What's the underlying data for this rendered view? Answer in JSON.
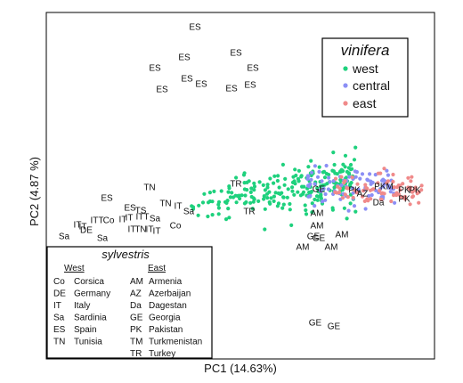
{
  "chart_data": {
    "type": "scatter",
    "xlabel": "PC1 (14.63%)",
    "ylabel": "PC2 (4.87 %)",
    "grid": false,
    "legend_position": "top-right",
    "legend_title": "vinifera",
    "series": [
      {
        "name": "west",
        "color": "#1ed17d"
      },
      {
        "name": "central",
        "color": "#8b8ff5"
      },
      {
        "name": "east",
        "color": "#f08a8a"
      }
    ],
    "sample_labels": [
      {
        "text": "ES",
        "x": 219,
        "y": 31
      },
      {
        "text": "ES",
        "x": 207,
        "y": 65
      },
      {
        "text": "ES",
        "x": 265,
        "y": 60
      },
      {
        "text": "ES",
        "x": 174,
        "y": 77
      },
      {
        "text": "ES",
        "x": 284,
        "y": 77
      },
      {
        "text": "ES",
        "x": 210,
        "y": 89
      },
      {
        "text": "ES",
        "x": 226,
        "y": 95
      },
      {
        "text": "ES",
        "x": 182,
        "y": 101
      },
      {
        "text": "ES",
        "x": 260,
        "y": 100
      },
      {
        "text": "ES",
        "x": 281,
        "y": 96
      },
      {
        "text": "ES",
        "x": 120,
        "y": 223
      },
      {
        "text": "ES",
        "x": 146,
        "y": 234
      },
      {
        "text": "TN",
        "x": 168,
        "y": 211
      },
      {
        "text": "TN",
        "x": 186,
        "y": 229
      },
      {
        "text": "IT",
        "x": 200,
        "y": 232
      },
      {
        "text": "Sa",
        "x": 212,
        "y": 238
      },
      {
        "text": "IT",
        "x": 145,
        "y": 245
      },
      {
        "text": "TS",
        "x": 158,
        "y": 237
      },
      {
        "text": "ITT",
        "x": 160,
        "y": 244
      },
      {
        "text": "Sa",
        "x": 174,
        "y": 246
      },
      {
        "text": "ITT",
        "x": 109,
        "y": 248
      },
      {
        "text": "Co",
        "x": 122,
        "y": 248
      },
      {
        "text": "IT",
        "x": 138,
        "y": 247
      },
      {
        "text": "IT",
        "x": 87,
        "y": 253
      },
      {
        "text": "IT",
        "x": 93,
        "y": 255
      },
      {
        "text": "DE",
        "x": 97,
        "y": 259
      },
      {
        "text": "IT",
        "x": 148,
        "y": 258
      },
      {
        "text": "TN",
        "x": 158,
        "y": 258
      },
      {
        "text": "IT",
        "x": 168,
        "y": 258
      },
      {
        "text": "IT",
        "x": 176,
        "y": 260
      },
      {
        "text": "Co",
        "x": 197,
        "y": 254
      },
      {
        "text": "Sa",
        "x": 72,
        "y": 266
      },
      {
        "text": "Sa",
        "x": 115,
        "y": 268
      },
      {
        "text": "TR",
        "x": 265,
        "y": 207
      },
      {
        "text": "TR",
        "x": 280,
        "y": 238
      },
      {
        "text": "GE",
        "x": 358,
        "y": 213
      },
      {
        "text": "PK",
        "x": 398,
        "y": 214
      },
      {
        "text": "AZ",
        "x": 407,
        "y": 218
      },
      {
        "text": "PKM",
        "x": 431,
        "y": 210
      },
      {
        "text": "PK",
        "x": 454,
        "y": 214
      },
      {
        "text": "PK",
        "x": 466,
        "y": 214
      },
      {
        "text": "Da",
        "x": 425,
        "y": 228
      },
      {
        "text": "PK",
        "x": 454,
        "y": 224
      },
      {
        "text": "AM",
        "x": 356,
        "y": 240
      },
      {
        "text": "AM",
        "x": 356,
        "y": 254
      },
      {
        "text": "GE",
        "x": 352,
        "y": 266
      },
      {
        "text": "GE",
        "x": 358,
        "y": 268
      },
      {
        "text": "AM",
        "x": 384,
        "y": 264
      },
      {
        "text": "AM",
        "x": 340,
        "y": 278
      },
      {
        "text": "AM",
        "x": 372,
        "y": 278
      },
      {
        "text": "GE",
        "x": 354,
        "y": 363
      },
      {
        "text": "GE",
        "x": 375,
        "y": 367
      }
    ],
    "sylvestris_key": {
      "title": "sylvestris",
      "west_header": "West",
      "east_header": "East",
      "west": [
        {
          "code": "Co",
          "name": "Corsica"
        },
        {
          "code": "DE",
          "name": "Germany"
        },
        {
          "code": "IT",
          "name": "Italy"
        },
        {
          "code": "Sa",
          "name": "Sardinia"
        },
        {
          "code": "ES",
          "name": "Spain"
        },
        {
          "code": "TN",
          "name": "Tunisia"
        }
      ],
      "east": [
        {
          "code": "AM",
          "name": "Armenia"
        },
        {
          "code": "AZ",
          "name": "Azerbaijan"
        },
        {
          "code": "Da",
          "name": "Dagestan"
        },
        {
          "code": "GE",
          "name": "Georgia"
        },
        {
          "code": "PK",
          "name": "Pakistan"
        },
        {
          "code": "TM",
          "name": "Turkmenistan"
        },
        {
          "code": "TR",
          "name": "Turkey"
        }
      ]
    }
  }
}
